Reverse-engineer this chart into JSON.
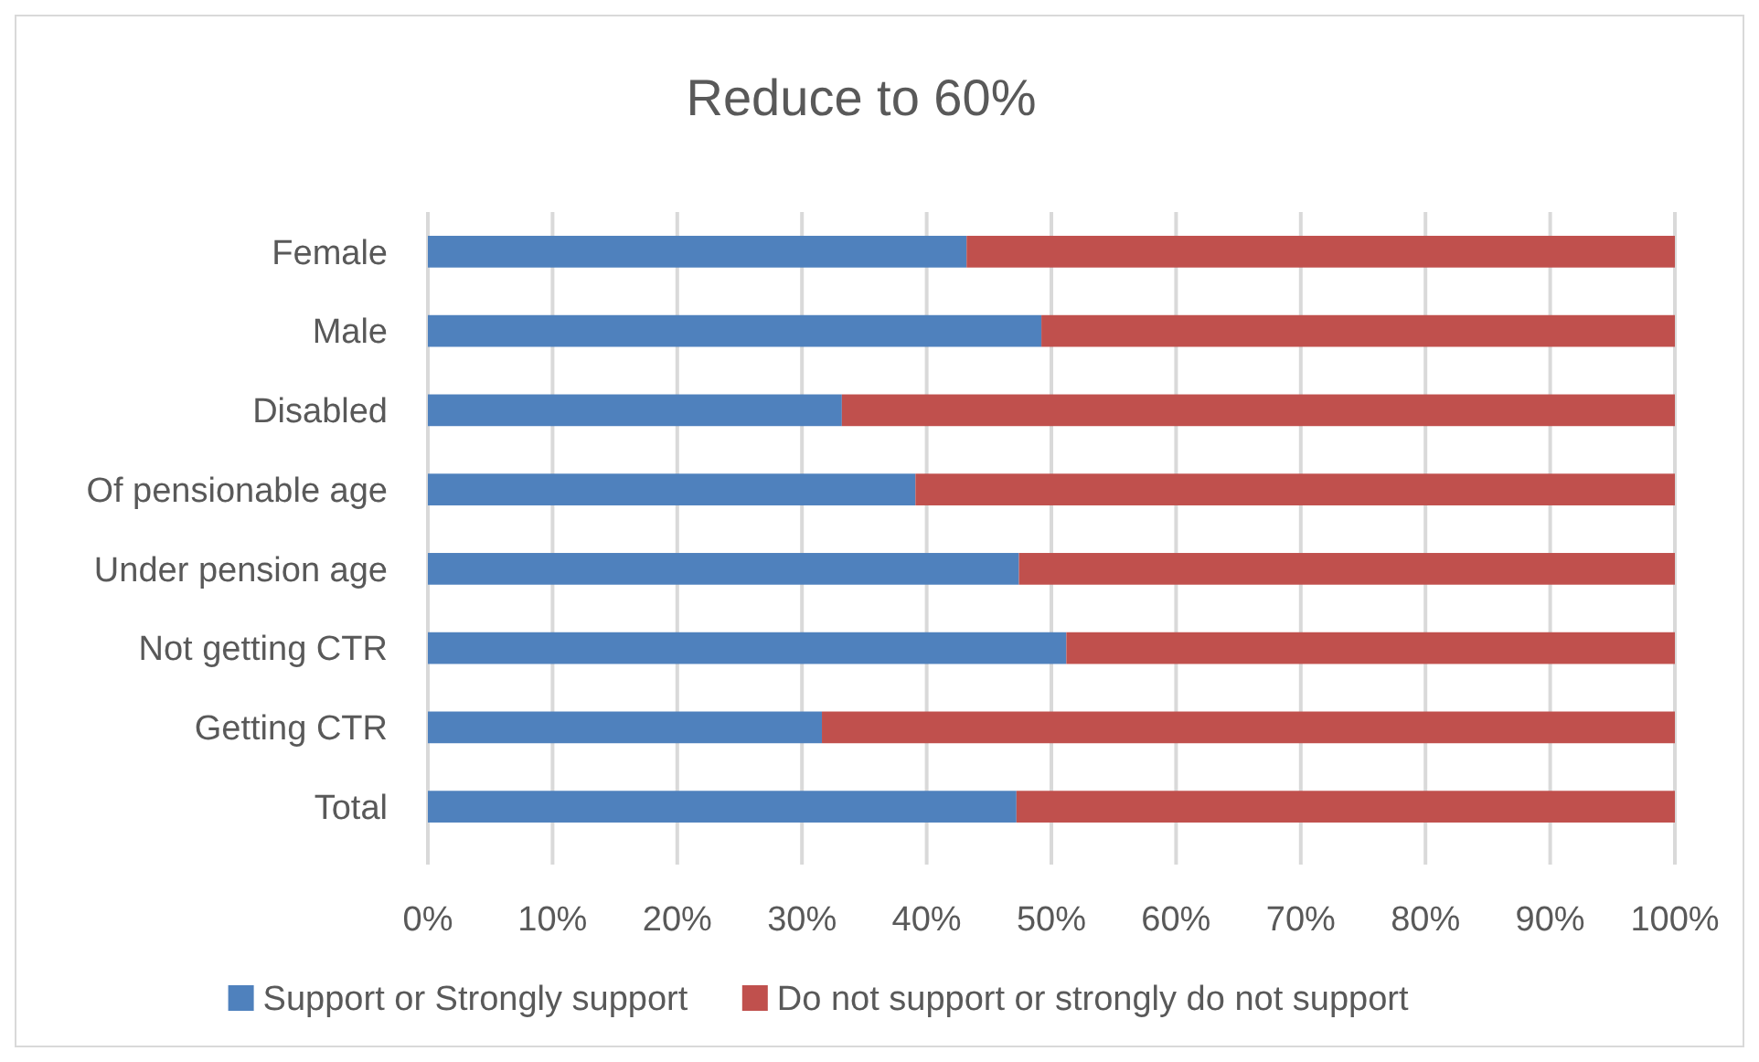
{
  "chart_data": {
    "type": "bar",
    "title": "Reduce to 60%",
    "orientation": "horizontal",
    "stacked": true,
    "categories": [
      "Female",
      "Male",
      "Disabled",
      "Of pensionable age",
      "Under pension age",
      "Not getting CTR",
      "Getting CTR",
      "Total"
    ],
    "series": [
      {
        "name": "Support or Strongly support",
        "color": "#4f81bd",
        "values": [
          43.2,
          49.2,
          33.2,
          39.1,
          47.4,
          51.2,
          31.6,
          47.2
        ]
      },
      {
        "name": "Do not support or strongly do not support",
        "color": "#c0504d",
        "values": [
          56.8,
          50.8,
          66.8,
          60.9,
          52.6,
          48.8,
          68.4,
          52.8
        ]
      }
    ],
    "xlim": [
      0,
      100
    ],
    "xticks": [
      {
        "value": 0,
        "label": "0%"
      },
      {
        "value": 10,
        "label": "10%"
      },
      {
        "value": 20,
        "label": "20%"
      },
      {
        "value": 30,
        "label": "30%"
      },
      {
        "value": 40,
        "label": "40%"
      },
      {
        "value": 50,
        "label": "50%"
      },
      {
        "value": 60,
        "label": "60%"
      },
      {
        "value": 70,
        "label": "70%"
      },
      {
        "value": 80,
        "label": "80%"
      },
      {
        "value": 90,
        "label": "90%"
      },
      {
        "value": 100,
        "label": "100%"
      }
    ],
    "grid": "x",
    "legend": "bottom"
  }
}
